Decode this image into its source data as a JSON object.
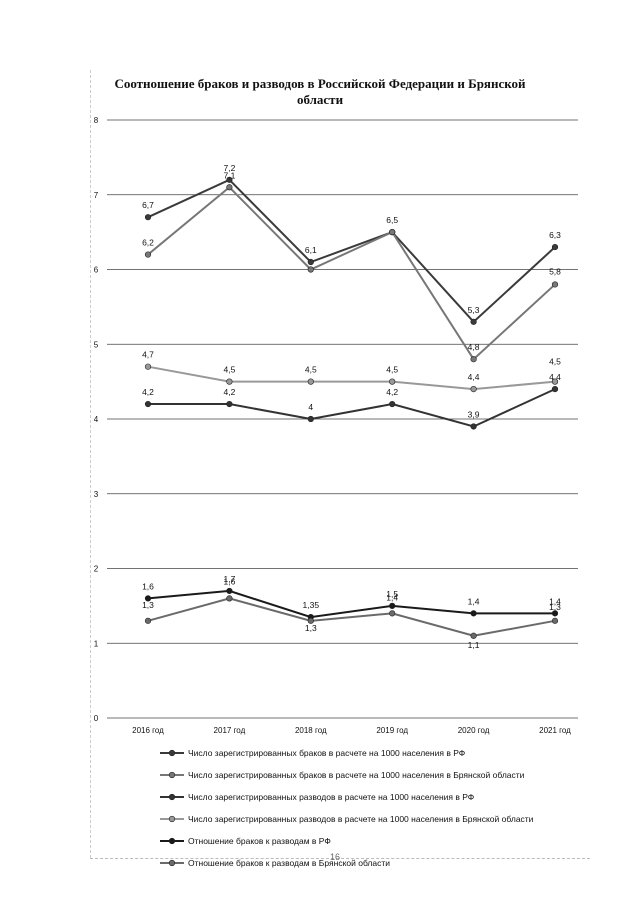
{
  "chart_data": {
    "type": "line",
    "title": "Соотношение браков и разводов в Российской Федерации и Брянской области",
    "xlabel": "",
    "ylabel": "",
    "ylim": [
      0,
      8
    ],
    "yticks": [
      "0",
      "1",
      "2",
      "3",
      "4",
      "5",
      "6",
      "7",
      "8"
    ],
    "categories": [
      "2016 год",
      "2017 год",
      "2018 год",
      "2019 год",
      "2020 год",
      "2021 год"
    ],
    "grid": true,
    "legend_position": "bottom",
    "series": [
      {
        "name": "Число зарегистрированных браков в расчете на 1000 населения в РФ",
        "values": [
          6.7,
          7.2,
          6.1,
          6.5,
          5.3,
          6.3
        ],
        "labels": [
          "6,7",
          "7,2",
          "6,1",
          "6,5",
          "5,3",
          "6,3"
        ],
        "color": "#3a3a3a"
      },
      {
        "name": "Число зарегистрированных браков в расчете на 1000 населения в Брянской области",
        "values": [
          6.2,
          7.1,
          6.0,
          6.5,
          4.8,
          5.8
        ],
        "labels": [
          "6,2",
          "7,1",
          "",
          "",
          "4,8",
          "5,8"
        ],
        "color": "#777777"
      },
      {
        "name": "Число зарегистрированных разводов в расчете на 1000 населения в РФ",
        "values": [
          4.2,
          4.2,
          4.0,
          4.2,
          3.9,
          4.4
        ],
        "labels": [
          "4,2",
          "4,2",
          "4",
          "4,2",
          "3,9",
          "4,4"
        ],
        "color": "#333333"
      },
      {
        "name": "Число зарегистрированных разводов в расчете на 1000 населения в Брянской области",
        "values": [
          4.7,
          4.5,
          4.5,
          4.5,
          4.4,
          4.5
        ],
        "labels": [
          "4,7",
          "4,5",
          "4,5",
          "4,5",
          "4,4",
          "4,5"
        ],
        "color": "#999999"
      },
      {
        "name": "Отношение браков к разводам в РФ",
        "values": [
          1.6,
          1.7,
          1.35,
          1.5,
          1.4,
          1.4
        ],
        "labels": [
          "1,6",
          "1,7",
          "1,35",
          "1,5",
          "1,4",
          "1,4"
        ],
        "color": "#1a1a1a"
      },
      {
        "name": "Отношение браков к разводам в Брянской области",
        "values": [
          1.3,
          1.6,
          1.3,
          1.4,
          1.1,
          1.3
        ],
        "labels": [
          "1,3",
          "1,6",
          "1,3",
          "1,4",
          "1,1",
          "1,3"
        ],
        "color": "#6a6a6a"
      }
    ]
  },
  "page": {
    "page_number": "16"
  }
}
